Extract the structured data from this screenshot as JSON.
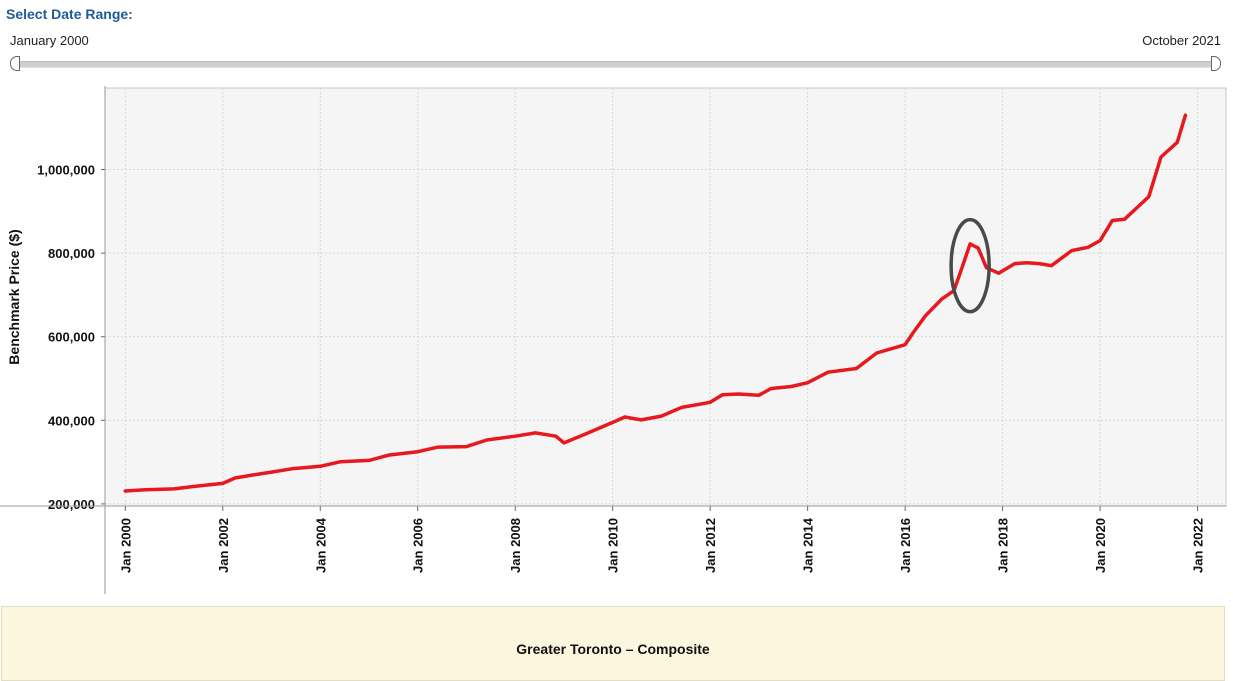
{
  "date_range": {
    "label": "Select Date Range:",
    "start": "January 2000",
    "end": "October 2021"
  },
  "chart_data": {
    "type": "line",
    "ylabel": "Benchmark Price ($)",
    "xlabel": "",
    "ylim": [
      195000,
      1195000
    ],
    "y_ticks": [
      200000,
      400000,
      600000,
      800000,
      1000000
    ],
    "y_tick_labels": [
      "200,000",
      "400,000",
      "600,000",
      "800,000",
      "1,000,000"
    ],
    "x_range": [
      "1999-08",
      "2022-08"
    ],
    "x_ticks": [
      "2000-01",
      "2002-01",
      "2004-01",
      "2006-01",
      "2008-01",
      "2010-01",
      "2012-01",
      "2014-01",
      "2016-01",
      "2018-01",
      "2020-01",
      "2022-01"
    ],
    "x_tick_labels": [
      "Jan 2000",
      "Jan 2002",
      "Jan 2004",
      "Jan 2006",
      "Jan 2008",
      "Jan 2010",
      "Jan 2012",
      "Jan 2014",
      "Jan 2016",
      "Jan 2018",
      "Jan 2020",
      "Jan 2022"
    ],
    "grid": true,
    "colors": {
      "line": "#e8191e",
      "plot_bg": "#f5f5f5",
      "annotation": "#4a4a4a"
    },
    "series": [
      {
        "points": [
          [
            "2000-01",
            231000
          ],
          [
            "2000-06",
            234000
          ],
          [
            "2001-01",
            236000
          ],
          [
            "2001-06",
            242000
          ],
          [
            "2002-01",
            249000
          ],
          [
            "2002-04",
            262000
          ],
          [
            "2002-09",
            270000
          ],
          [
            "2003-01",
            276000
          ],
          [
            "2003-06",
            284000
          ],
          [
            "2004-01",
            290000
          ],
          [
            "2004-06",
            301000
          ],
          [
            "2005-01",
            304000
          ],
          [
            "2005-06",
            317000
          ],
          [
            "2006-01",
            325000
          ],
          [
            "2006-06",
            336000
          ],
          [
            "2007-01",
            337000
          ],
          [
            "2007-06",
            353000
          ],
          [
            "2008-01",
            362000
          ],
          [
            "2008-06",
            370000
          ],
          [
            "2008-11",
            362000
          ],
          [
            "2009-01",
            346000
          ],
          [
            "2009-06",
            366000
          ],
          [
            "2010-01",
            395000
          ],
          [
            "2010-04",
            408000
          ],
          [
            "2010-08",
            401000
          ],
          [
            "2011-01",
            410000
          ],
          [
            "2011-06",
            431000
          ],
          [
            "2012-01",
            443000
          ],
          [
            "2012-04",
            461000
          ],
          [
            "2012-08",
            463000
          ],
          [
            "2013-01",
            460000
          ],
          [
            "2013-04",
            476000
          ],
          [
            "2013-09",
            481000
          ],
          [
            "2014-01",
            490000
          ],
          [
            "2014-06",
            515000
          ],
          [
            "2015-01",
            524000
          ],
          [
            "2015-06",
            561000
          ],
          [
            "2016-01",
            581000
          ],
          [
            "2016-03",
            610000
          ],
          [
            "2016-06",
            650000
          ],
          [
            "2016-10",
            690000
          ],
          [
            "2017-01",
            710000
          ],
          [
            "2017-03",
            765000
          ],
          [
            "2017-05",
            822000
          ],
          [
            "2017-07",
            812000
          ],
          [
            "2017-09",
            765000
          ],
          [
            "2017-12",
            752000
          ],
          [
            "2018-04",
            775000
          ],
          [
            "2018-07",
            777000
          ],
          [
            "2018-10",
            775000
          ],
          [
            "2019-01",
            770000
          ],
          [
            "2019-06",
            806000
          ],
          [
            "2019-10",
            814000
          ],
          [
            "2020-01",
            830000
          ],
          [
            "2020-04",
            878000
          ],
          [
            "2020-07",
            881000
          ],
          [
            "2020-10",
            908000
          ],
          [
            "2021-01",
            935000
          ],
          [
            "2021-04",
            1030000
          ],
          [
            "2021-08",
            1065000
          ],
          [
            "2021-10",
            1130000
          ]
        ]
      }
    ],
    "annotation": {
      "type": "ellipse",
      "center": [
        "2017-05",
        770000
      ],
      "note": "circled peak"
    },
    "title": "Greater Toronto – Composite"
  }
}
